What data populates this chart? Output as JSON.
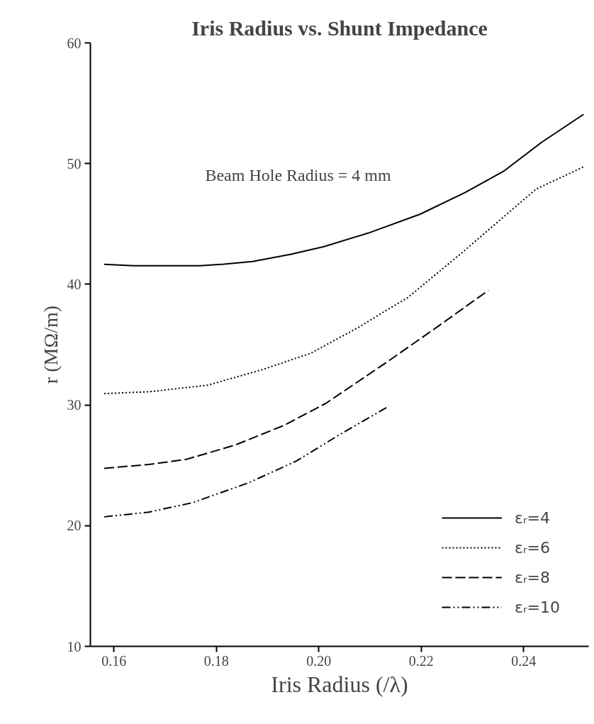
{
  "chart_data": {
    "type": "line",
    "title": "Iris Radius vs. Shunt Impedance",
    "xlabel": "Iris Radius (/λ)",
    "ylabel": "r (MΩ/m)",
    "annotations": [
      "Beam Hole Radius = 4 mm"
    ],
    "xlim": [
      0.1554,
      0.2527
    ],
    "xticks": [
      {
        "value": 0.16,
        "label": "0.16"
      },
      {
        "value": 0.18,
        "label": "0.18"
      },
      {
        "value": 0.2,
        "label": "0.20"
      },
      {
        "value": 0.22,
        "label": "0.22"
      },
      {
        "value": 0.24,
        "label": "0.24"
      }
    ],
    "ylim": [
      10,
      60
    ],
    "yticks": [
      10,
      20,
      30,
      40,
      50,
      60
    ],
    "grid": false,
    "legend": "bottom right",
    "marker": "none",
    "series": [
      {
        "name": "εᵣ=4",
        "color": "#000000",
        "line_style": "solid",
        "x": [
          0.1581,
          0.1639,
          0.1768,
          0.1815,
          0.1871,
          0.1946,
          0.2009,
          0.2097,
          0.2198,
          0.2286,
          0.2361,
          0.2436,
          0.2517
        ],
        "values": [
          41.65,
          41.54,
          41.54,
          41.67,
          41.89,
          42.49,
          43.11,
          44.25,
          45.81,
          47.61,
          49.37,
          51.79,
          54.08
        ]
      },
      {
        "name": "εᵣ=6",
        "color": "#000000",
        "line_style": "dotted",
        "x": [
          0.1581,
          0.167,
          0.1783,
          0.189,
          0.1984,
          0.2078,
          0.2129,
          0.2173,
          0.2282,
          0.2298,
          0.2424,
          0.2519
        ],
        "values": [
          30.94,
          31.1,
          31.64,
          32.93,
          34.28,
          36.44,
          37.77,
          38.87,
          42.7,
          43.29,
          47.88,
          49.77
        ]
      },
      {
        "name": "εᵣ=8",
        "color": "#000000",
        "line_style": "dashed",
        "x": [
          0.1581,
          0.1668,
          0.1741,
          0.1836,
          0.1932,
          0.2014,
          0.2135,
          0.2235,
          0.2331
        ],
        "values": [
          24.75,
          25.07,
          25.49,
          26.67,
          28.31,
          30.14,
          33.61,
          36.58,
          39.49
        ]
      },
      {
        "name": "εᵣ=10",
        "color": "#000000",
        "line_style": "dashdot",
        "x": [
          0.1581,
          0.1668,
          0.1754,
          0.1864,
          0.1955,
          0.2046,
          0.2137
        ],
        "values": [
          20.73,
          21.12,
          21.91,
          23.57,
          25.33,
          27.68,
          29.9
        ]
      }
    ]
  }
}
